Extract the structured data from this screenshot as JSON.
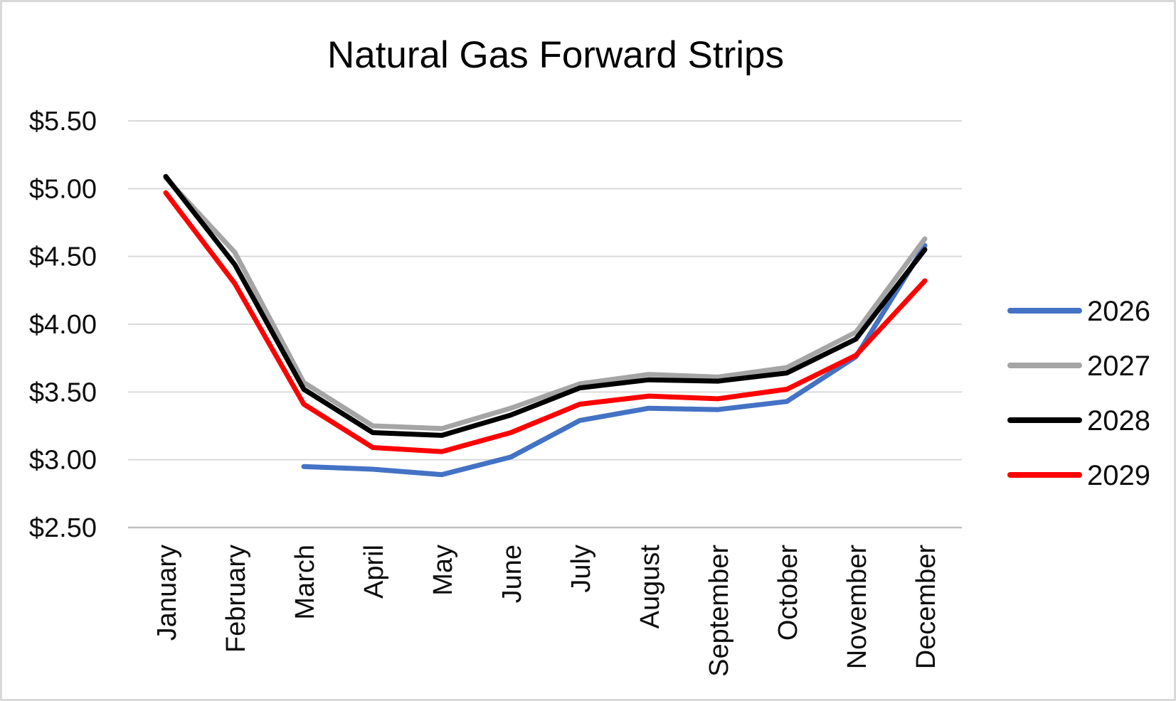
{
  "title": "Natural Gas Forward Strips",
  "colors": {
    "background": "#FFFFFF",
    "frame_border": "#D9D9D9",
    "gridline": "#D9D9D9",
    "axis_line": "#BFBFBF",
    "text": "#000000",
    "series_2026": "#4472C4",
    "series_2027": "#A5A5A5",
    "series_2028": "#000000",
    "series_2029": "#FF0000"
  },
  "chart_data": {
    "type": "line",
    "title": "Natural Gas Forward Strips",
    "categories": [
      "January",
      "February",
      "March",
      "April",
      "May",
      "June",
      "July",
      "August",
      "September",
      "October",
      "November",
      "December"
    ],
    "x_label_rotation_degrees": -90,
    "grid": true,
    "legend_position": "right",
    "y_axis": {
      "min": 2.5,
      "max": 5.5,
      "step": 0.5,
      "format": "currency_usd",
      "tick_values": [
        5.5,
        5.0,
        4.5,
        4.0,
        3.5,
        3.0,
        2.5
      ],
      "tick_labels": [
        "$5.50",
        "$5.00",
        "$4.50",
        "$4.00",
        "$3.50",
        "$3.00",
        "$2.50"
      ]
    },
    "series": [
      {
        "name": "2026",
        "color": "#4472C4",
        "values": [
          null,
          null,
          2.95,
          2.93,
          2.89,
          3.02,
          3.29,
          3.38,
          3.37,
          3.43,
          3.76,
          4.58
        ]
      },
      {
        "name": "2027",
        "color": "#A5A5A5",
        "values": [
          5.08,
          4.53,
          3.57,
          3.25,
          3.23,
          3.38,
          3.56,
          3.63,
          3.61,
          3.68,
          3.94,
          4.63
        ]
      },
      {
        "name": "2028",
        "color": "#000000",
        "values": [
          5.09,
          4.44,
          3.52,
          3.2,
          3.18,
          3.33,
          3.53,
          3.59,
          3.58,
          3.64,
          3.89,
          4.55
        ]
      },
      {
        "name": "2029",
        "color": "#FF0000",
        "values": [
          4.97,
          4.3,
          3.41,
          3.09,
          3.06,
          3.2,
          3.41,
          3.47,
          3.45,
          3.52,
          3.77,
          4.32
        ]
      }
    ],
    "legend_entries": [
      "2026",
      "2027",
      "2028",
      "2029"
    ]
  }
}
